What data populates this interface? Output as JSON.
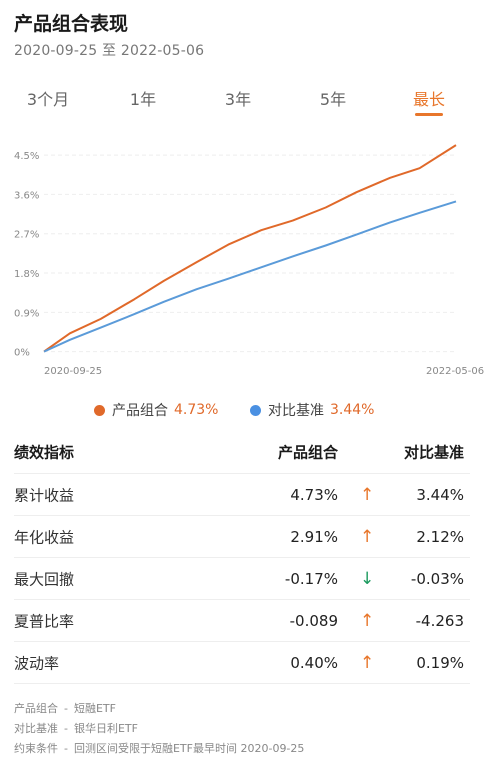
{
  "header": {
    "title": "产品组合表现",
    "date_range": "2020-09-25 至 2022-05-06"
  },
  "tabs": [
    {
      "label": "3个月",
      "active": false
    },
    {
      "label": "1年",
      "active": false
    },
    {
      "label": "3年",
      "active": false
    },
    {
      "label": "5年",
      "active": false
    },
    {
      "label": "最长",
      "active": true
    }
  ],
  "colors": {
    "accent": "#e8762b",
    "portfolio": "#e0692a",
    "benchmark": "#5b9bd9",
    "down": "#1b9a5e"
  },
  "chart_data": {
    "type": "line",
    "y_ticks": [
      "4.5%",
      "3.6%",
      "2.7%",
      "1.8%",
      "0.9%",
      "0%"
    ],
    "y_tick_values": [
      4.5,
      3.6,
      2.7,
      1.8,
      0.9,
      0
    ],
    "ylim": [
      -0.1,
      4.8
    ],
    "x_tick_labels": [
      "2020-09-25",
      "2022-05-06"
    ],
    "x": [
      "2020-09-25",
      "2020-11-01",
      "2020-12-15",
      "2021-02-01",
      "2021-03-15",
      "2021-05-01",
      "2021-06-15",
      "2021-08-01",
      "2021-09-15",
      "2021-11-01",
      "2021-12-15",
      "2022-02-01",
      "2022-03-15",
      "2022-05-06"
    ],
    "series": [
      {
        "name": "产品组合",
        "values": [
          0.0,
          0.42,
          0.75,
          1.2,
          1.62,
          2.05,
          2.45,
          2.78,
          3.0,
          3.3,
          3.65,
          3.98,
          4.2,
          4.73
        ]
      },
      {
        "name": "对比基准",
        "values": [
          0.0,
          0.27,
          0.55,
          0.86,
          1.14,
          1.43,
          1.67,
          1.93,
          2.18,
          2.43,
          2.68,
          2.96,
          3.18,
          3.44
        ]
      }
    ],
    "grid": true
  },
  "legend": [
    {
      "name": "产品组合",
      "value": "4.73%"
    },
    {
      "name": "对比基准",
      "value": "3.44%"
    }
  ],
  "table": {
    "headers": [
      "绩效指标",
      "产品组合",
      "对比基准"
    ],
    "rows": [
      {
        "name": "累计收益",
        "portfolio": "4.73%",
        "arrow": "↑",
        "dir": "up",
        "benchmark": "3.44%"
      },
      {
        "name": "年化收益",
        "portfolio": "2.91%",
        "arrow": "↑",
        "dir": "up",
        "benchmark": "2.12%"
      },
      {
        "name": "最大回撤",
        "portfolio": "-0.17%",
        "arrow": "↓",
        "dir": "down",
        "benchmark": "-0.03%"
      },
      {
        "name": "夏普比率",
        "portfolio": "-0.089",
        "arrow": "↑",
        "dir": "up",
        "benchmark": "-4.263"
      },
      {
        "name": "波动率",
        "portfolio": "0.40%",
        "arrow": "↑",
        "dir": "up",
        "benchmark": "0.19%"
      }
    ]
  },
  "notes": [
    {
      "label": "产品组合",
      "value": "短融ETF"
    },
    {
      "label": "对比基准",
      "value": "银华日利ETF"
    },
    {
      "label": "约束条件",
      "value": "回测区间受限于短融ETF最早时间 2020-09-25"
    }
  ],
  "note_separator": "-"
}
